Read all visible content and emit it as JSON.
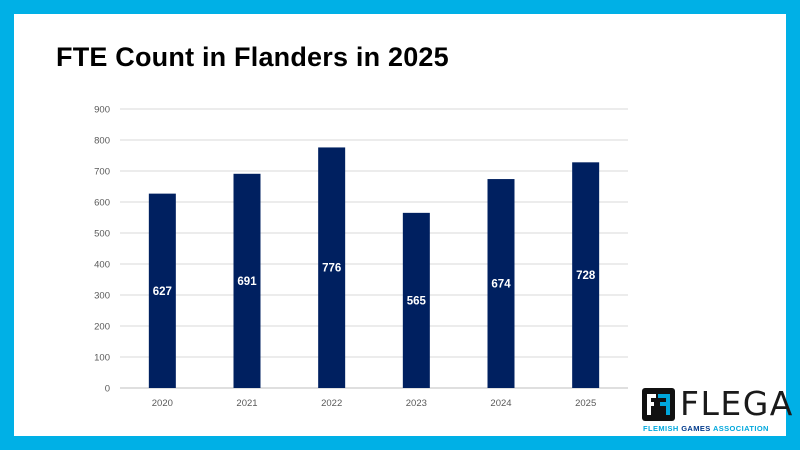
{
  "slide": {
    "title": "FTE Count in Flanders in 2025"
  },
  "colors": {
    "frame": "#00b0e6",
    "bar": "#002060",
    "grid": "#d9d9d9",
    "logo_accent": "#00a7dc"
  },
  "logo": {
    "word": "FLEGA",
    "tagline_left": "FLEMISH",
    "tagline_mid": "GAMES",
    "tagline_right": "ASSOCIATION"
  },
  "chart_data": {
    "type": "bar",
    "categories": [
      "2020",
      "2021",
      "2022",
      "2023",
      "2024",
      "2025"
    ],
    "values": [
      627,
      691,
      776,
      565,
      674,
      728
    ],
    "data_labels": [
      "627",
      "691",
      "776",
      "565",
      "674",
      "728"
    ],
    "ylim": [
      0,
      900
    ],
    "yticks": [
      0,
      100,
      200,
      300,
      400,
      500,
      600,
      700,
      800,
      900
    ],
    "title": "FTE Count in Flanders in 2025",
    "xlabel": "",
    "ylabel": "",
    "grid": true,
    "legend": "none"
  }
}
